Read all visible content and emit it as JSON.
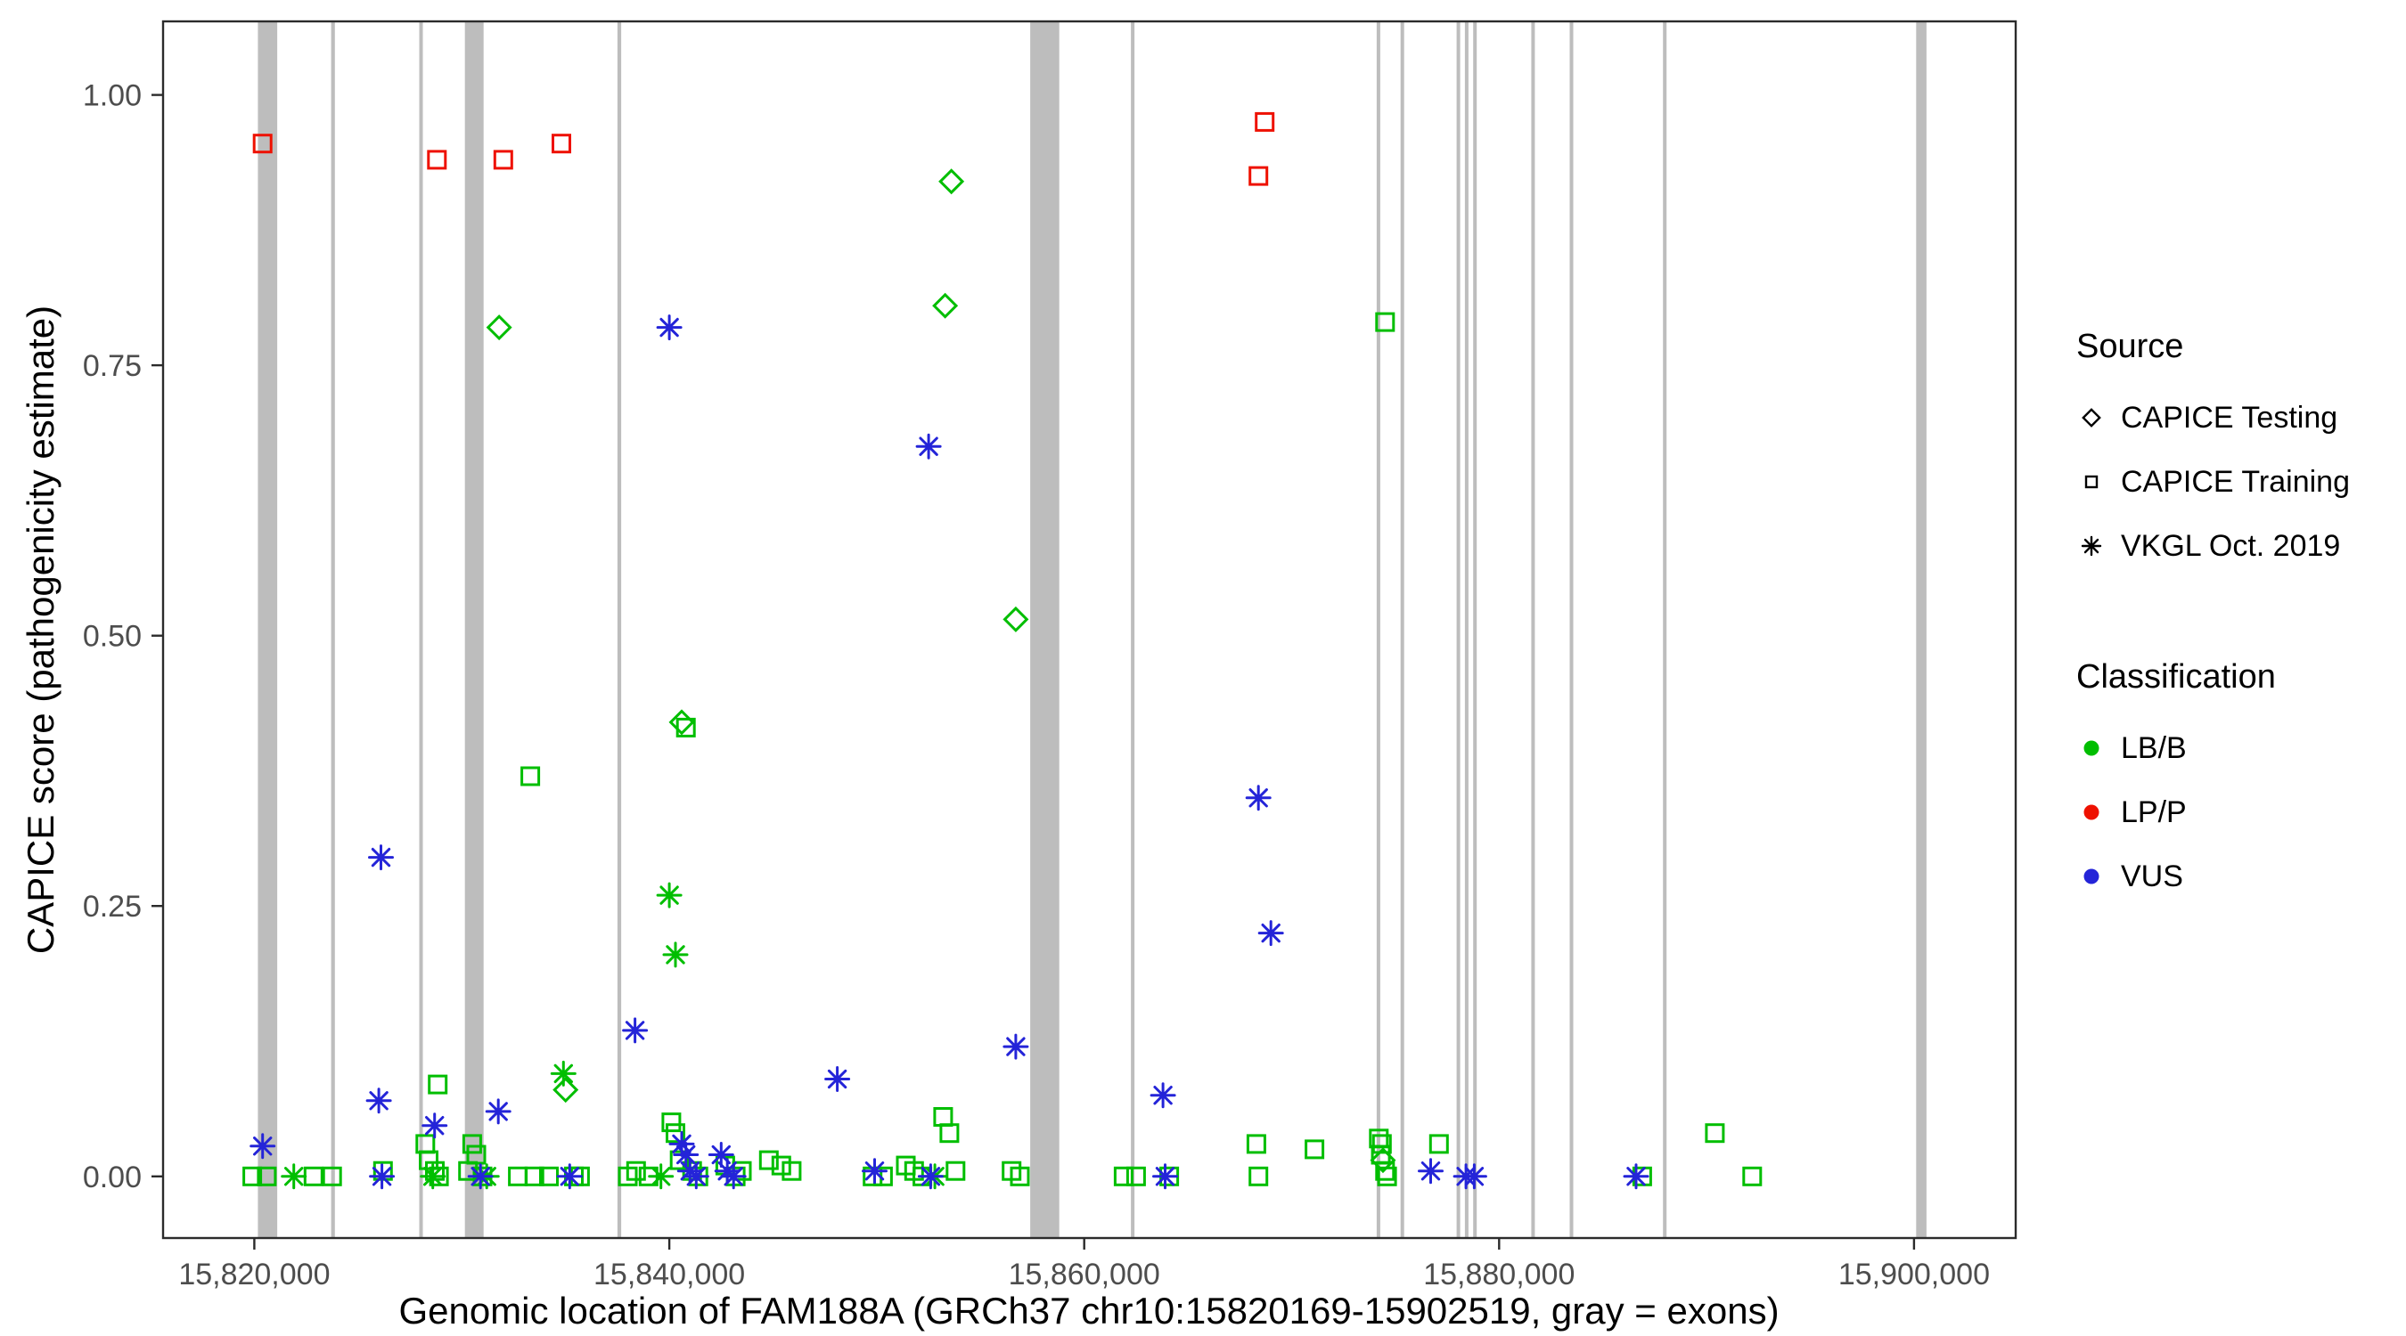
{
  "chart_data": {
    "type": "scatter",
    "title": "",
    "xlabel": "Genomic location of FAM188A (GRCh37 chr10:15820169-15902519, gray = exons)",
    "ylabel": "CAPICE score (pathogenicity estimate)",
    "x_domain": [
      15815600,
      15904900
    ],
    "y_domain": [
      -0.057,
      1.068
    ],
    "x_ticks": [
      {
        "value": 15820000,
        "label": "15,820,000"
      },
      {
        "value": 15840000,
        "label": "15,840,000"
      },
      {
        "value": 15860000,
        "label": "15,860,000"
      },
      {
        "value": 15880000,
        "label": "15,880,000"
      },
      {
        "value": 15900000,
        "label": "15,900,000"
      }
    ],
    "y_ticks": [
      {
        "value": 0.0,
        "label": "0.00"
      },
      {
        "value": 0.25,
        "label": "0.25"
      },
      {
        "value": 0.5,
        "label": "0.50"
      },
      {
        "value": 0.75,
        "label": "0.75"
      },
      {
        "value": 1.0,
        "label": "1.00"
      }
    ],
    "grid": false,
    "exon_color": "#bdbdbd",
    "exons": [
      [
        15820169,
        15821100
      ],
      [
        15823700,
        15823880
      ],
      [
        15827950,
        15828120
      ],
      [
        15830150,
        15831050
      ],
      [
        15837500,
        15837680
      ],
      [
        15857400,
        15858800
      ],
      [
        15862250,
        15862420
      ],
      [
        15874100,
        15874270
      ],
      [
        15875250,
        15875420
      ],
      [
        15877950,
        15878120
      ],
      [
        15878350,
        15878520
      ],
      [
        15878750,
        15878920
      ],
      [
        15881550,
        15881720
      ],
      [
        15883400,
        15883570
      ],
      [
        15887900,
        15888070
      ],
      [
        15900100,
        15900600
      ]
    ],
    "shape_by_source": {
      "testing": "diamond",
      "training": "square",
      "vkgl": "asterisk"
    },
    "colors": {
      "LB/B": "#00be00",
      "LP/P": "#ee1100",
      "VUS": "#2424d8"
    },
    "points_schema": [
      "x",
      "y",
      "source",
      "classification"
    ],
    "points": [
      [
        15820400,
        0.955,
        "training",
        "LP/P"
      ],
      [
        15828800,
        0.94,
        "training",
        "LP/P"
      ],
      [
        15832000,
        0.94,
        "training",
        "LP/P"
      ],
      [
        15834800,
        0.955,
        "training",
        "LP/P"
      ],
      [
        15868400,
        0.925,
        "training",
        "LP/P"
      ],
      [
        15868700,
        0.975,
        "training",
        "LP/P"
      ],
      [
        15831800,
        0.785,
        "testing",
        "LB/B"
      ],
      [
        15853600,
        0.92,
        "testing",
        "LB/B"
      ],
      [
        15853300,
        0.805,
        "testing",
        "LB/B"
      ],
      [
        15856700,
        0.515,
        "testing",
        "LB/B"
      ],
      [
        15840600,
        0.42,
        "testing",
        "LB/B"
      ],
      [
        15835000,
        0.08,
        "testing",
        "LB/B"
      ],
      [
        15874400,
        0.015,
        "testing",
        "LB/B"
      ],
      [
        15833300,
        0.37,
        "training",
        "LB/B"
      ],
      [
        15840800,
        0.415,
        "training",
        "LB/B"
      ],
      [
        15874500,
        0.79,
        "training",
        "LB/B"
      ],
      [
        15828840,
        0.085,
        "training",
        "LB/B"
      ],
      [
        15819900,
        0.0,
        "training",
        "LB/B"
      ],
      [
        15820600,
        0.0,
        "training",
        "LB/B"
      ],
      [
        15822850,
        0.0,
        "training",
        "LB/B"
      ],
      [
        15823750,
        0.0,
        "training",
        "LB/B"
      ],
      [
        15826200,
        0.005,
        "training",
        "LB/B"
      ],
      [
        15828240,
        0.03,
        "training",
        "LB/B"
      ],
      [
        15828400,
        0.015,
        "training",
        "LB/B"
      ],
      [
        15828700,
        0.005,
        "training",
        "LB/B"
      ],
      [
        15828900,
        0.0,
        "training",
        "LB/B"
      ],
      [
        15830300,
        0.005,
        "training",
        "LB/B"
      ],
      [
        15830500,
        0.03,
        "training",
        "LB/B"
      ],
      [
        15830700,
        0.02,
        "training",
        "LB/B"
      ],
      [
        15831000,
        0.0,
        "training",
        "LB/B"
      ],
      [
        15832700,
        0.0,
        "training",
        "LB/B"
      ],
      [
        15833500,
        0.0,
        "training",
        "LB/B"
      ],
      [
        15834200,
        0.0,
        "training",
        "LB/B"
      ],
      [
        15835400,
        0.0,
        "training",
        "LB/B"
      ],
      [
        15835700,
        0.0,
        "training",
        "LB/B"
      ],
      [
        15838000,
        0.0,
        "training",
        "LB/B"
      ],
      [
        15838400,
        0.005,
        "training",
        "LB/B"
      ],
      [
        15839000,
        0.0,
        "training",
        "LB/B"
      ],
      [
        15840100,
        0.05,
        "training",
        "LB/B"
      ],
      [
        15840300,
        0.04,
        "training",
        "LB/B"
      ],
      [
        15840500,
        0.015,
        "training",
        "LB/B"
      ],
      [
        15841100,
        0.005,
        "training",
        "LB/B"
      ],
      [
        15841400,
        0.0,
        "training",
        "LB/B"
      ],
      [
        15842700,
        0.01,
        "training",
        "LB/B"
      ],
      [
        15843200,
        0.0,
        "training",
        "LB/B"
      ],
      [
        15843500,
        0.005,
        "training",
        "LB/B"
      ],
      [
        15844800,
        0.015,
        "training",
        "LB/B"
      ],
      [
        15845400,
        0.01,
        "training",
        "LB/B"
      ],
      [
        15845900,
        0.005,
        "training",
        "LB/B"
      ],
      [
        15849800,
        0.0,
        "training",
        "LB/B"
      ],
      [
        15850300,
        0.0,
        "training",
        "LB/B"
      ],
      [
        15851400,
        0.01,
        "training",
        "LB/B"
      ],
      [
        15851800,
        0.005,
        "training",
        "LB/B"
      ],
      [
        15852200,
        0.0,
        "training",
        "LB/B"
      ],
      [
        15853200,
        0.055,
        "training",
        "LB/B"
      ],
      [
        15853500,
        0.04,
        "training",
        "LB/B"
      ],
      [
        15853800,
        0.005,
        "training",
        "LB/B"
      ],
      [
        15856500,
        0.005,
        "training",
        "LB/B"
      ],
      [
        15856900,
        0.0,
        "training",
        "LB/B"
      ],
      [
        15861900,
        0.0,
        "training",
        "LB/B"
      ],
      [
        15862500,
        0.0,
        "training",
        "LB/B"
      ],
      [
        15864100,
        0.0,
        "training",
        "LB/B"
      ],
      [
        15868300,
        0.03,
        "training",
        "LB/B"
      ],
      [
        15868400,
        0.0,
        "training",
        "LB/B"
      ],
      [
        15871100,
        0.025,
        "training",
        "LB/B"
      ],
      [
        15874200,
        0.035,
        "training",
        "LB/B"
      ],
      [
        15874350,
        0.03,
        "training",
        "LB/B"
      ],
      [
        15874300,
        0.02,
        "training",
        "LB/B"
      ],
      [
        15874500,
        0.005,
        "training",
        "LB/B"
      ],
      [
        15874600,
        0.0,
        "training",
        "LB/B"
      ],
      [
        15877100,
        0.03,
        "training",
        "LB/B"
      ],
      [
        15886900,
        0.0,
        "training",
        "LB/B"
      ],
      [
        15890400,
        0.04,
        "training",
        "LB/B"
      ],
      [
        15892200,
        0.0,
        "training",
        "LB/B"
      ],
      [
        15840000,
        0.26,
        "vkgl",
        "LB/B"
      ],
      [
        15840300,
        0.205,
        "vkgl",
        "LB/B"
      ],
      [
        15834900,
        0.095,
        "vkgl",
        "LB/B"
      ],
      [
        15821900,
        0.0,
        "vkgl",
        "LB/B"
      ],
      [
        15828600,
        0.0,
        "vkgl",
        "LB/B"
      ],
      [
        15831200,
        0.0,
        "vkgl",
        "LB/B"
      ],
      [
        15839600,
        0.0,
        "vkgl",
        "LB/B"
      ],
      [
        15852800,
        0.0,
        "vkgl",
        "LB/B"
      ],
      [
        15840000,
        0.785,
        "vkgl",
        "VUS"
      ],
      [
        15852500,
        0.675,
        "vkgl",
        "VUS"
      ],
      [
        15826100,
        0.295,
        "vkgl",
        "VUS"
      ],
      [
        15838350,
        0.135,
        "vkgl",
        "VUS"
      ],
      [
        15848100,
        0.09,
        "vkgl",
        "VUS"
      ],
      [
        15856700,
        0.12,
        "vkgl",
        "VUS"
      ],
      [
        15863800,
        0.075,
        "vkgl",
        "VUS"
      ],
      [
        15868400,
        0.35,
        "vkgl",
        "VUS"
      ],
      [
        15869000,
        0.225,
        "vkgl",
        "VUS"
      ],
      [
        15820400,
        0.028,
        "vkgl",
        "VUS"
      ],
      [
        15826000,
        0.07,
        "vkgl",
        "VUS"
      ],
      [
        15826150,
        0.0,
        "vkgl",
        "VUS"
      ],
      [
        15828690,
        0.047,
        "vkgl",
        "VUS"
      ],
      [
        15831760,
        0.06,
        "vkgl",
        "VUS"
      ],
      [
        15830900,
        0.0,
        "vkgl",
        "VUS"
      ],
      [
        15835200,
        0.0,
        "vkgl",
        "VUS"
      ],
      [
        15840600,
        0.03,
        "vkgl",
        "VUS"
      ],
      [
        15840800,
        0.02,
        "vkgl",
        "VUS"
      ],
      [
        15841000,
        0.005,
        "vkgl",
        "VUS"
      ],
      [
        15841300,
        0.0,
        "vkgl",
        "VUS"
      ],
      [
        15842500,
        0.02,
        "vkgl",
        "VUS"
      ],
      [
        15842800,
        0.005,
        "vkgl",
        "VUS"
      ],
      [
        15843100,
        0.0,
        "vkgl",
        "VUS"
      ],
      [
        15849900,
        0.005,
        "vkgl",
        "VUS"
      ],
      [
        15852600,
        0.0,
        "vkgl",
        "VUS"
      ],
      [
        15863900,
        0.0,
        "vkgl",
        "VUS"
      ],
      [
        15876700,
        0.005,
        "vkgl",
        "VUS"
      ],
      [
        15878400,
        0.0,
        "vkgl",
        "VUS"
      ],
      [
        15878800,
        0.0,
        "vkgl",
        "VUS"
      ],
      [
        15886600,
        0.0,
        "vkgl",
        "VUS"
      ]
    ],
    "legend": {
      "source": {
        "title": "Source",
        "items": [
          {
            "label": "CAPICE Testing",
            "shape": "diamond"
          },
          {
            "label": "CAPICE Training",
            "shape": "square"
          },
          {
            "label": "VKGL Oct. 2019",
            "shape": "asterisk"
          }
        ]
      },
      "classification": {
        "title": "Classification",
        "items": [
          {
            "label": "LB/B",
            "color": "#00be00"
          },
          {
            "label": "LP/P",
            "color": "#ee1100"
          },
          {
            "label": "VUS",
            "color": "#2424d8"
          }
        ]
      }
    }
  }
}
